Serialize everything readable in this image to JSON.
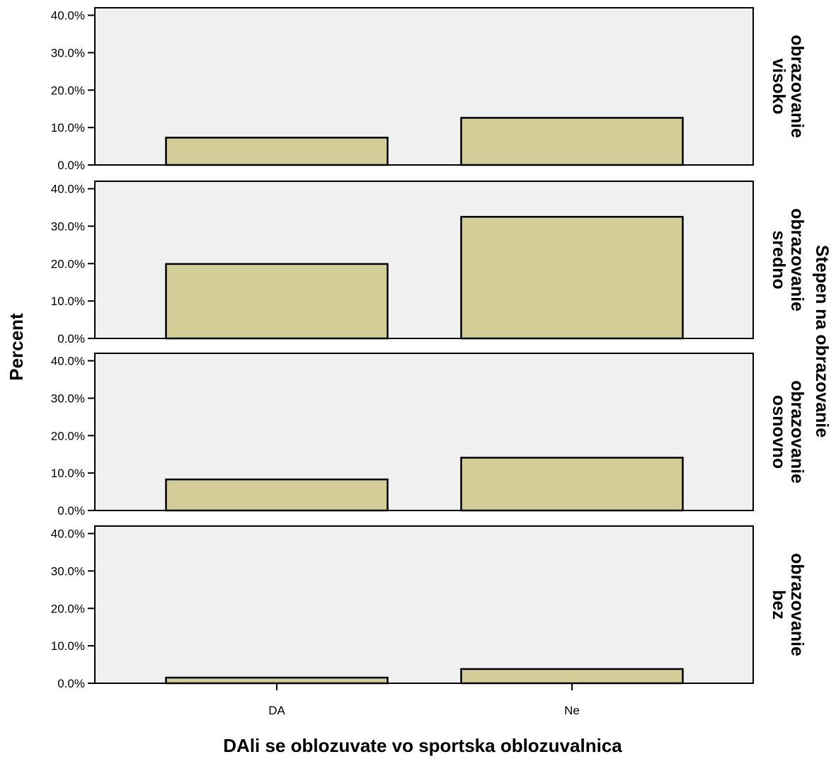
{
  "chart_data": {
    "type": "bar",
    "xlabel": "DAli se oblozuvate vo sportska oblozuvalnica",
    "ylabel": "Percent",
    "facet_title": "Stepen na obrazovanie",
    "categories": [
      "DA",
      "Ne"
    ],
    "ylim": [
      0,
      42
    ],
    "yticks": [
      "0.0%",
      "10.0%",
      "20.0%",
      "30.0%",
      "40.0%"
    ],
    "grid": false,
    "colors": {
      "bar_fill": "#d3ce98",
      "panel_bg": "#f0f0f0",
      "stroke": "#000000"
    },
    "panels": [
      {
        "label_lines": [
          "visoko",
          "obrazovanie"
        ],
        "values": [
          7.3,
          12.6
        ]
      },
      {
        "label_lines": [
          "sredno",
          "obrazovanie"
        ],
        "values": [
          19.9,
          32.5
        ]
      },
      {
        "label_lines": [
          "osnovno",
          "obrazovanie"
        ],
        "values": [
          8.3,
          14.1
        ]
      },
      {
        "label_lines": [
          "bez",
          "obrazovanie"
        ],
        "values": [
          1.5,
          3.8
        ]
      }
    ]
  }
}
